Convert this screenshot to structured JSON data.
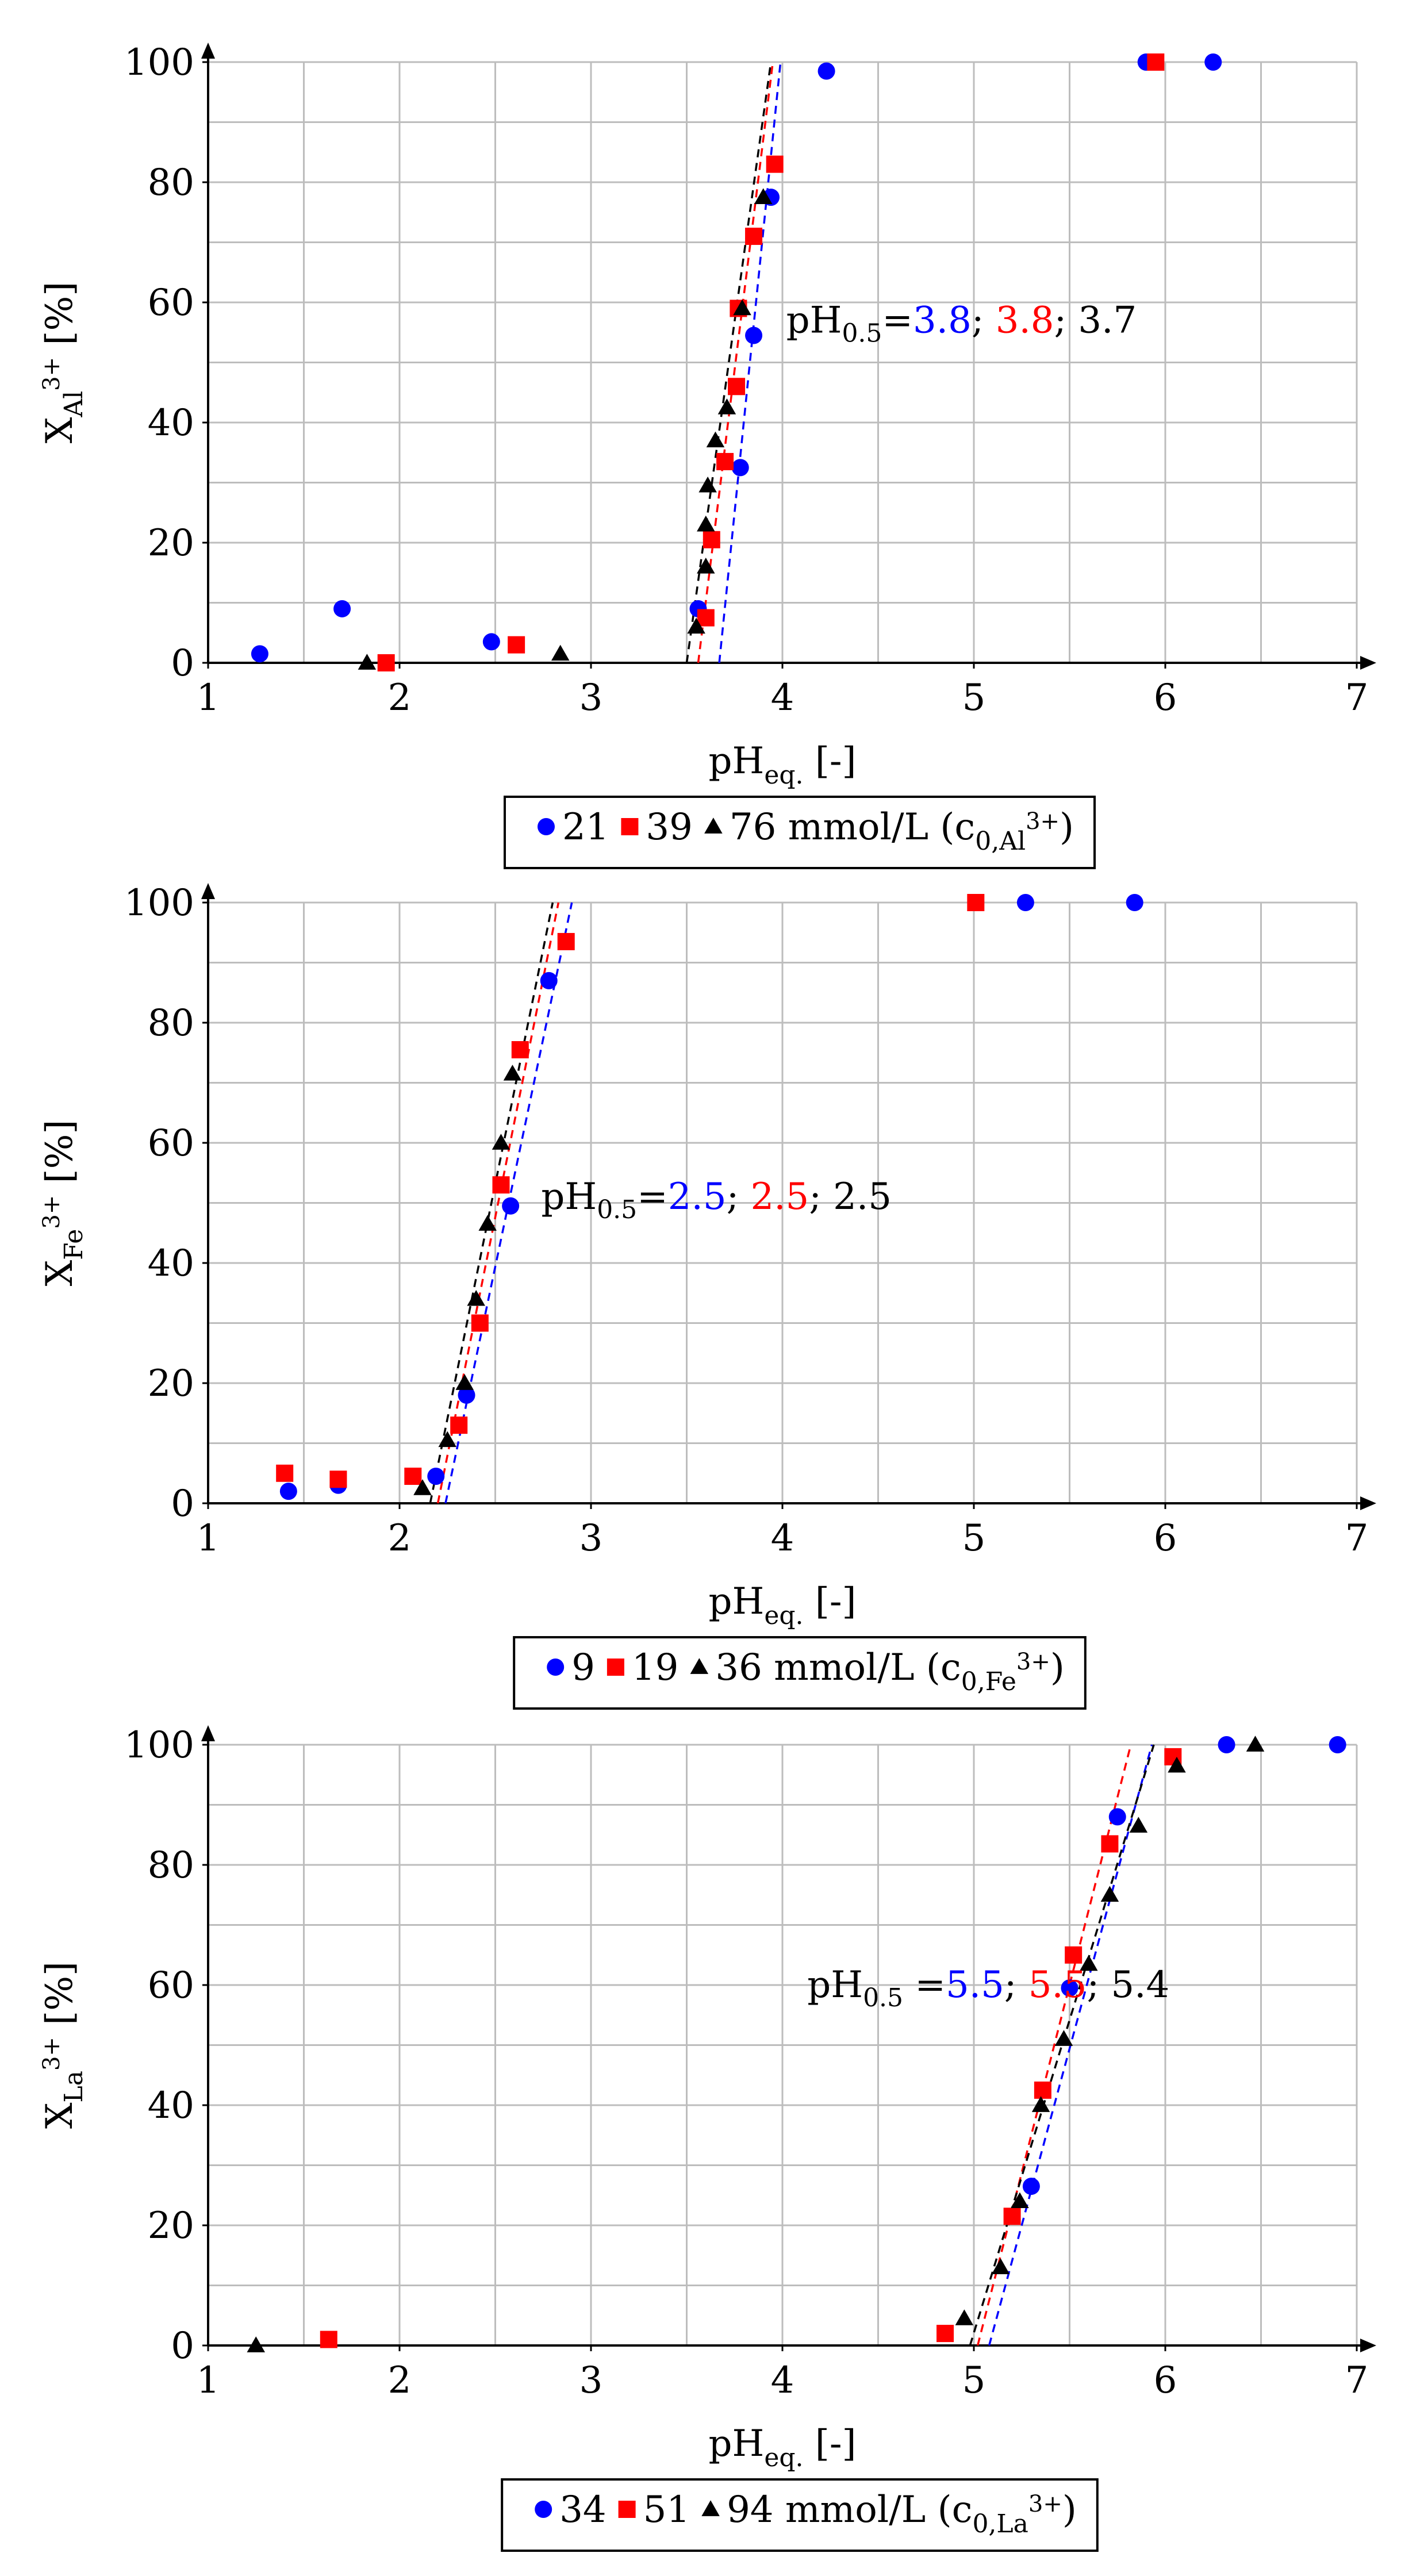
{
  "colors": {
    "s1": "#0000ff",
    "s2": "#ff0000",
    "s3": "#000000",
    "grid": "#bdbdbd"
  },
  "chart_data": [
    {
      "type": "scatter",
      "id": "al",
      "xlabel_main": "pH",
      "xlabel_sub": "eq.",
      "xlabel_tail": " [-]",
      "ylabel_main": "X",
      "ylabel_sub": "Al",
      "ylabel_sup": "3+",
      "ylabel_tail": " [%]",
      "xlim": [
        1,
        7
      ],
      "ylim": [
        0,
        100
      ],
      "xticks": [
        1,
        2,
        3,
        4,
        5,
        6,
        7
      ],
      "yticks": [
        0,
        20,
        40,
        60,
        80,
        100
      ],
      "annotation": {
        "prefix": "pH",
        "prefix_sub": "0.5",
        "eq": "=",
        "v1": "3.8",
        "sep1": "; ",
        "v2": "3.8",
        "sep2": "; ",
        "v3": "3.7",
        "anchor": [
          4.02,
          55
        ]
      },
      "legend": {
        "l1": "21",
        "l2": "39",
        "l3": "76 mmol/L (c",
        "sub": "0,Al",
        "sup": "3+",
        "close": ")"
      },
      "series": [
        {
          "name": "21",
          "marker": "circle",
          "points": [
            [
              1.27,
              1.5
            ],
            [
              1.7,
              9
            ],
            [
              2.48,
              3.5
            ],
            [
              3.56,
              9
            ],
            [
              3.78,
              32.5
            ],
            [
              3.85,
              54.5
            ],
            [
              3.94,
              77.5
            ],
            [
              4.23,
              98.5
            ],
            [
              5.9,
              100
            ],
            [
              6.25,
              100
            ]
          ],
          "fit": [
            [
              3.67,
              0
            ],
            [
              3.99,
              100
            ]
          ]
        },
        {
          "name": "39",
          "marker": "square",
          "points": [
            [
              1.93,
              0
            ],
            [
              2.61,
              3
            ],
            [
              3.6,
              7.5
            ],
            [
              3.63,
              20.5
            ],
            [
              3.7,
              33.5
            ],
            [
              3.76,
              46
            ],
            [
              3.77,
              59
            ],
            [
              3.85,
              71
            ],
            [
              3.96,
              83
            ],
            [
              5.95,
              100
            ]
          ],
          "fit": [
            [
              3.56,
              0
            ],
            [
              3.95,
              100
            ]
          ]
        },
        {
          "name": "76",
          "marker": "triangle",
          "points": [
            [
              1.83,
              0
            ],
            [
              2.84,
              1.5
            ],
            [
              3.55,
              6
            ],
            [
              3.6,
              16
            ],
            [
              3.6,
              23
            ],
            [
              3.61,
              29.5
            ],
            [
              3.65,
              37
            ],
            [
              3.71,
              42.5
            ],
            [
              3.79,
              59
            ],
            [
              3.9,
              77.5
            ]
          ],
          "fit": [
            [
              3.5,
              0
            ],
            [
              3.94,
              100
            ]
          ]
        }
      ]
    },
    {
      "type": "scatter",
      "id": "fe",
      "xlabel_main": "pH",
      "xlabel_sub": "eq.",
      "xlabel_tail": " [-]",
      "ylabel_main": "X",
      "ylabel_sub": "Fe",
      "ylabel_sup": "3+",
      "ylabel_tail": " [%]",
      "xlim": [
        1,
        7
      ],
      "ylim": [
        0,
        100
      ],
      "xticks": [
        1,
        2,
        3,
        4,
        5,
        6,
        7
      ],
      "yticks": [
        0,
        20,
        40,
        60,
        80,
        100
      ],
      "annotation": {
        "prefix": "pH",
        "prefix_sub": "0.5",
        "eq": "=",
        "v1": "2.5",
        "sep1": "; ",
        "v2": "2.5",
        "sep2": "; ",
        "v3": "2.5",
        "anchor": [
          2.74,
          49
        ]
      },
      "legend": {
        "l1": "9",
        "l2": "19",
        "l3": "36 mmol/L (c",
        "sub": "0,Fe",
        "sup": "3+",
        "close": ")"
      },
      "series": [
        {
          "name": "9",
          "marker": "circle",
          "points": [
            [
              1.42,
              2
            ],
            [
              1.68,
              3
            ],
            [
              2.19,
              4.5
            ],
            [
              2.35,
              18
            ],
            [
              2.58,
              49.5
            ],
            [
              2.78,
              87
            ],
            [
              5.27,
              100
            ],
            [
              5.84,
              100
            ]
          ],
          "fit": [
            [
              2.24,
              0
            ],
            [
              2.9,
              100
            ]
          ]
        },
        {
          "name": "19",
          "marker": "square",
          "points": [
            [
              1.4,
              5
            ],
            [
              1.68,
              4
            ],
            [
              2.07,
              4.5
            ],
            [
              2.31,
              13
            ],
            [
              2.42,
              30
            ],
            [
              2.53,
              53
            ],
            [
              2.63,
              75.5
            ],
            [
              2.87,
              93.5
            ],
            [
              5.01,
              100
            ]
          ],
          "fit": [
            [
              2.2,
              0
            ],
            [
              2.83,
              100
            ]
          ]
        },
        {
          "name": "36",
          "marker": "triangle",
          "points": [
            [
              2.12,
              2.5
            ],
            [
              2.25,
              10.5
            ],
            [
              2.34,
              20
            ],
            [
              2.4,
              34
            ],
            [
              2.46,
              46.5
            ],
            [
              2.53,
              60
            ],
            [
              2.59,
              71.5
            ]
          ],
          "fit": [
            [
              2.16,
              0
            ],
            [
              2.8,
              100
            ]
          ]
        }
      ]
    },
    {
      "type": "scatter",
      "id": "la",
      "xlabel_main": "pH",
      "xlabel_sub": "eq.",
      "xlabel_tail": " [-]",
      "ylabel_main": "X",
      "ylabel_sub": "La",
      "ylabel_sup": "3+",
      "ylabel_tail": " [%]",
      "xlim": [
        1,
        7
      ],
      "ylim": [
        0,
        100
      ],
      "xticks": [
        1,
        2,
        3,
        4,
        5,
        6,
        7
      ],
      "yticks": [
        0,
        20,
        40,
        60,
        80,
        100
      ],
      "annotation": {
        "prefix": "pH",
        "prefix_sub": "0.5",
        "eq": " =",
        "v1": "5.5",
        "sep1": "; ",
        "v2": "5.5",
        "sep2": "; ",
        "v3": "5.4",
        "anchor": [
          4.13,
          58
        ]
      },
      "legend": {
        "l1": "34",
        "l2": "51",
        "l3": "94 mmol/L (c",
        "sub": "0,La",
        "sup": "3+",
        "close": ")"
      },
      "series": [
        {
          "name": "34",
          "marker": "circle",
          "points": [
            [
              5.3,
              26.5
            ],
            [
              5.5,
              59.5
            ],
            [
              5.75,
              88
            ],
            [
              6.32,
              100
            ],
            [
              6.9,
              100
            ]
          ],
          "fit": [
            [
              5.08,
              0
            ],
            [
              5.93,
              100
            ]
          ]
        },
        {
          "name": "51",
          "marker": "square",
          "points": [
            [
              1.63,
              1
            ],
            [
              4.85,
              2
            ],
            [
              5.2,
              21.5
            ],
            [
              5.36,
              42.5
            ],
            [
              5.52,
              65
            ],
            [
              5.71,
              83.5
            ],
            [
              6.04,
              98
            ]
          ],
          "fit": [
            [
              5.02,
              0
            ],
            [
              5.82,
              100
            ]
          ]
        },
        {
          "name": "94",
          "marker": "triangle",
          "points": [
            [
              1.25,
              0
            ],
            [
              4.95,
              4.5
            ],
            [
              5.14,
              13
            ],
            [
              5.24,
              24
            ],
            [
              5.35,
              40
            ],
            [
              5.47,
              51
            ],
            [
              5.6,
              63.5
            ],
            [
              5.71,
              75
            ],
            [
              5.86,
              86.5
            ],
            [
              6.06,
              96.5
            ],
            [
              6.47,
              100
            ]
          ],
          "fit": [
            [
              4.98,
              0
            ],
            [
              5.94,
              100
            ]
          ]
        }
      ]
    }
  ]
}
